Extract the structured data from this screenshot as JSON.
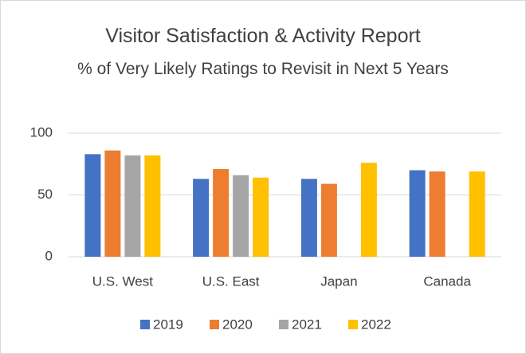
{
  "chart_data": {
    "type": "bar",
    "title": "Visitor Satisfaction & Activity Report",
    "subtitle": "% of Very Likely Ratings to Revisit in Next 5 Years",
    "categories": [
      "U.S. West",
      "U.S. East",
      "Japan",
      "Canada"
    ],
    "series": [
      {
        "name": "2019",
        "color": "#4472c4",
        "values": [
          83,
          63,
          63,
          70
        ]
      },
      {
        "name": "2020",
        "color": "#ed7d31",
        "values": [
          86,
          71,
          59,
          69
        ]
      },
      {
        "name": "2021",
        "color": "#a5a5a5",
        "values": [
          82,
          66,
          null,
          null
        ]
      },
      {
        "name": "2022",
        "color": "#ffc000",
        "values": [
          82,
          64,
          76,
          69
        ]
      }
    ],
    "ylim": [
      0,
      100
    ],
    "yticks": [
      0,
      50,
      100
    ],
    "grid": true,
    "legend": "bottom"
  }
}
